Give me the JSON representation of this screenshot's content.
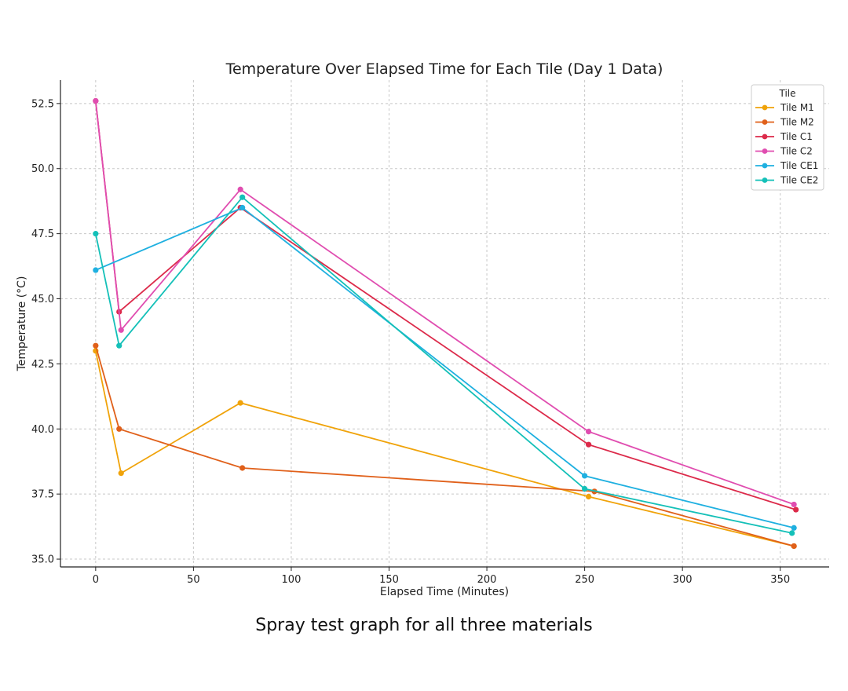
{
  "chart_data": {
    "type": "line",
    "title": "Temperature Over Elapsed Time for Each Tile (Day 1 Data)",
    "xlabel": "Elapsed Time (Minutes)",
    "ylabel": "Temperature (°C)",
    "xlim": [
      -18,
      375
    ],
    "ylim": [
      34.7,
      53.4
    ],
    "xticks": [
      0,
      50,
      100,
      150,
      200,
      250,
      300,
      350
    ],
    "xtick_labels": [
      "0",
      "50",
      "100",
      "150",
      "200",
      "250",
      "300",
      "350"
    ],
    "yticks": [
      35.0,
      37.5,
      40.0,
      42.5,
      45.0,
      47.5,
      50.0,
      52.5
    ],
    "ytick_labels": [
      "35.0",
      "37.5",
      "40.0",
      "42.5",
      "45.0",
      "47.5",
      "50.0",
      "52.5"
    ],
    "grid": true,
    "legend_title": "Tile",
    "legend_position": "top-right",
    "series": [
      {
        "name": "Tile M1",
        "color": "#f0a30a",
        "x": [
          0,
          13,
          74,
          252,
          357
        ],
        "y": [
          43.0,
          38.3,
          41.0,
          37.4,
          35.5
        ]
      },
      {
        "name": "Tile M2",
        "color": "#e0601a",
        "x": [
          0,
          12,
          75,
          255,
          357
        ],
        "y": [
          43.2,
          40.0,
          38.5,
          37.6,
          35.5
        ]
      },
      {
        "name": "Tile C1",
        "color": "#dc2a4a",
        "x": [
          0,
          12,
          74,
          252,
          358
        ],
        "y": [
          52.6,
          44.5,
          48.5,
          39.4,
          36.9
        ]
      },
      {
        "name": "Tile C2",
        "color": "#e04db0",
        "x": [
          0,
          13,
          74,
          252,
          357
        ],
        "y": [
          52.6,
          43.8,
          49.2,
          39.9,
          37.1
        ]
      },
      {
        "name": "Tile CE1",
        "color": "#1fb0e0",
        "x": [
          0,
          75,
          250,
          357
        ],
        "y": [
          46.1,
          48.5,
          38.2,
          36.2
        ]
      },
      {
        "name": "Tile CE2",
        "color": "#14c0b8",
        "x": [
          0,
          12,
          75,
          250,
          356
        ],
        "y": [
          47.5,
          43.2,
          48.9,
          37.7,
          36.0
        ]
      }
    ]
  },
  "caption": "Spray test graph for all three materials"
}
